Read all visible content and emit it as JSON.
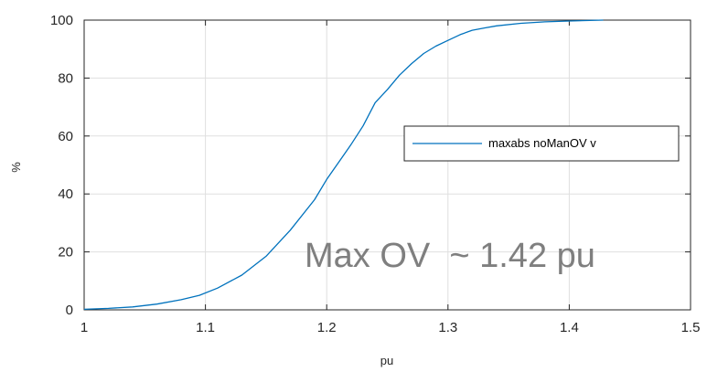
{
  "chart_data": {
    "type": "line",
    "title": "",
    "xlabel": "pu",
    "ylabel": "%",
    "xlim": [
      1,
      1.5
    ],
    "ylim": [
      0,
      100
    ],
    "xticks": [
      1,
      1.1,
      1.2,
      1.3,
      1.4,
      1.5
    ],
    "yticks": [
      0,
      20,
      40,
      60,
      80,
      100
    ],
    "xtick_labels": [
      "1",
      "1.1",
      "1.2",
      "1.3",
      "1.4",
      "1.5"
    ],
    "ytick_labels": [
      "0",
      "20",
      "40",
      "60",
      "80",
      "100"
    ],
    "grid": true,
    "legend_position": "right",
    "series": [
      {
        "name": "maxabs noManOV v",
        "color": "#0072bd",
        "x": [
          1.0,
          1.02,
          1.04,
          1.06,
          1.08,
          1.095,
          1.11,
          1.13,
          1.15,
          1.17,
          1.19,
          1.2,
          1.21,
          1.22,
          1.23,
          1.24,
          1.25,
          1.26,
          1.27,
          1.28,
          1.29,
          1.3,
          1.31,
          1.32,
          1.33,
          1.34,
          1.36,
          1.38,
          1.4,
          1.428
        ],
        "y": [
          0.2,
          0.5,
          1.0,
          2.0,
          3.5,
          5.0,
          7.5,
          12.0,
          18.5,
          27.5,
          38.0,
          45.0,
          51.0,
          57.0,
          63.5,
          71.5,
          76.0,
          81.0,
          85.0,
          88.5,
          91.0,
          93.0,
          95.0,
          96.5,
          97.3,
          98.0,
          98.9,
          99.4,
          99.7,
          100.0
        ]
      }
    ],
    "annotations": [
      {
        "text": "Max OV  ~ 1.42 pu"
      }
    ]
  }
}
